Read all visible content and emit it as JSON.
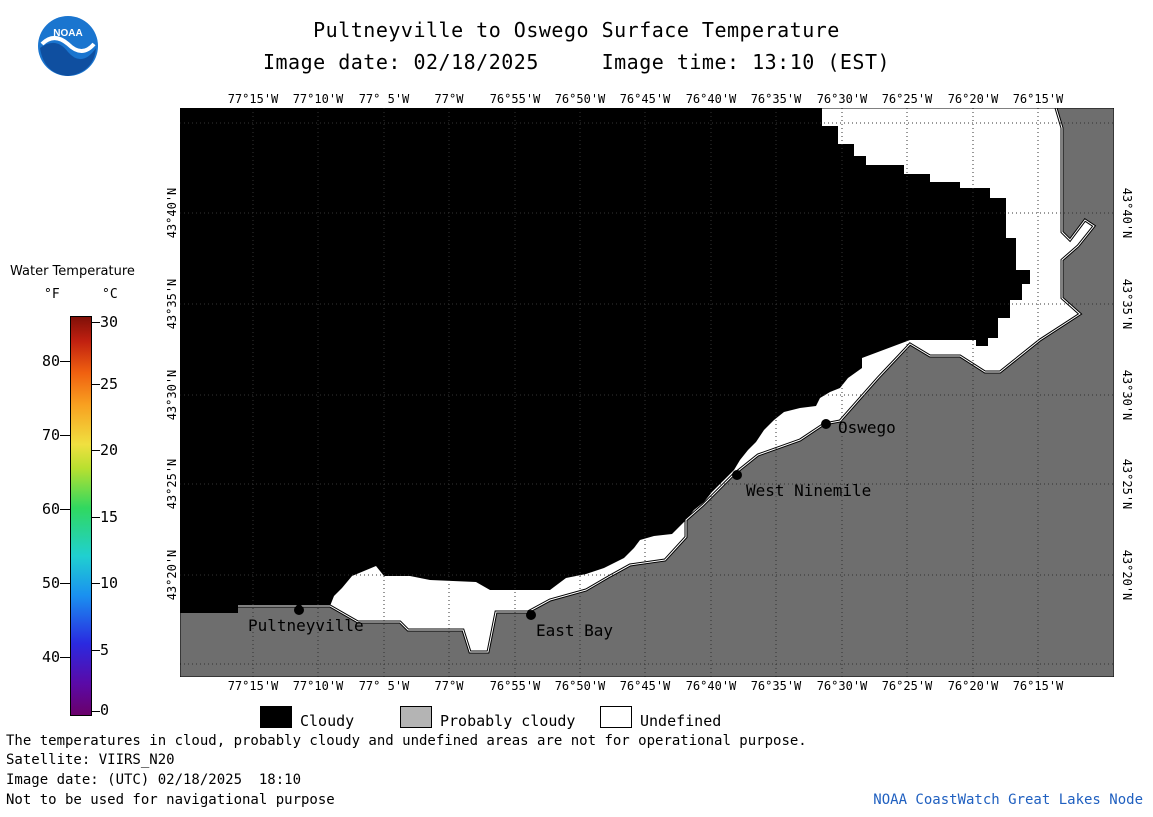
{
  "header": {
    "title": "Pultneyville to Oswego Surface Temperature",
    "subtitle": "Image date: 02/18/2025     Image time: 13:10 (EST)"
  },
  "logo": {
    "text": "NOAA"
  },
  "map": {
    "lon_labels": [
      "77°15'W",
      "77°10'W",
      "77° 5'W",
      "77°W",
      "76°55'W",
      "76°50'W",
      "76°45'W",
      "76°40'W",
      "76°35'W",
      "76°30'W",
      "76°25'W",
      "76°20'W",
      "76°15'W"
    ],
    "lat_labels": [
      "43°40'N",
      "43°35'N",
      "43°30'N",
      "43°25'N",
      "43°20'N"
    ],
    "places": [
      "Pultneyville",
      "East Bay",
      "West Ninemile",
      "Oswego"
    ],
    "colors": {
      "cloudy": "#000000",
      "probably_cloudy": "#6e6e6e",
      "undefined": "#ffffff"
    }
  },
  "colorbar": {
    "title": "Water Temperature",
    "unit_f": "°F",
    "unit_c": "°C",
    "f_ticks": [
      "80",
      "70",
      "60",
      "50",
      "40"
    ],
    "c_ticks": [
      "30",
      "25",
      "20",
      "15",
      "10",
      "5",
      "0"
    ]
  },
  "legend": {
    "cloudy": "Cloudy",
    "probably_cloudy": "Probably cloudy",
    "undefined": "Undefined"
  },
  "footer": {
    "note": "The temperatures in cloud, probably cloudy and undefined areas are not for operational purpose.",
    "satellite": "Satellite: VIIRS_N20",
    "image_date_utc": "Image date: (UTC) 02/18/2025  18:10",
    "navigation": "Not to be used for navigational purpose",
    "credit": "NOAA CoastWatch Great Lakes Node"
  }
}
